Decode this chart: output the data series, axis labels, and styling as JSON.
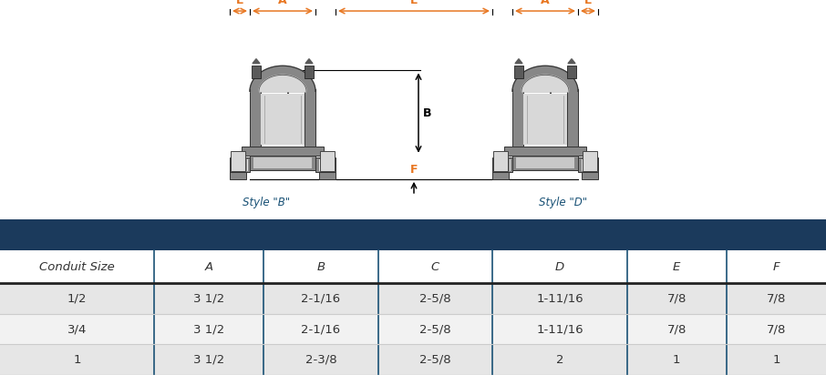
{
  "header_color": "#1b3a5c",
  "col_line_color": "#1a5276",
  "row_odd_color": "#e6e6e6",
  "row_even_color": "#f2f2f2",
  "columns": [
    "Conduit Size",
    "A",
    "B",
    "C",
    "D",
    "E",
    "F"
  ],
  "col_widths": [
    1.55,
    1.1,
    1.15,
    1.15,
    1.35,
    1.0,
    1.0
  ],
  "rows": [
    [
      "1/2",
      "3 1/2",
      "2-1/16",
      "2-5/8",
      "1-11/16",
      "7/8",
      "7/8"
    ],
    [
      "3/4",
      "3 1/2",
      "2-1/16",
      "2-5/8",
      "1-11/16",
      "7/8",
      "7/8"
    ],
    [
      "1",
      "3 1/2",
      "2-3/8",
      "2-5/8",
      "2",
      "1",
      "1"
    ]
  ],
  "color_A": "#e87722",
  "color_B": "#000000",
  "color_C": "#1a5276",
  "color_D": "#1a5276",
  "color_E": "#e87722",
  "color_F": "#e87722",
  "style_label_color": "#1a5276",
  "bg_color": "#ffffff",
  "dark_gray": "#5a5a5a",
  "mid_gray": "#878787",
  "light_gray": "#a8a8a8",
  "lighter_gray": "#c8c8c8",
  "very_light_gray": "#d8d8d8",
  "white": "#ffffff"
}
